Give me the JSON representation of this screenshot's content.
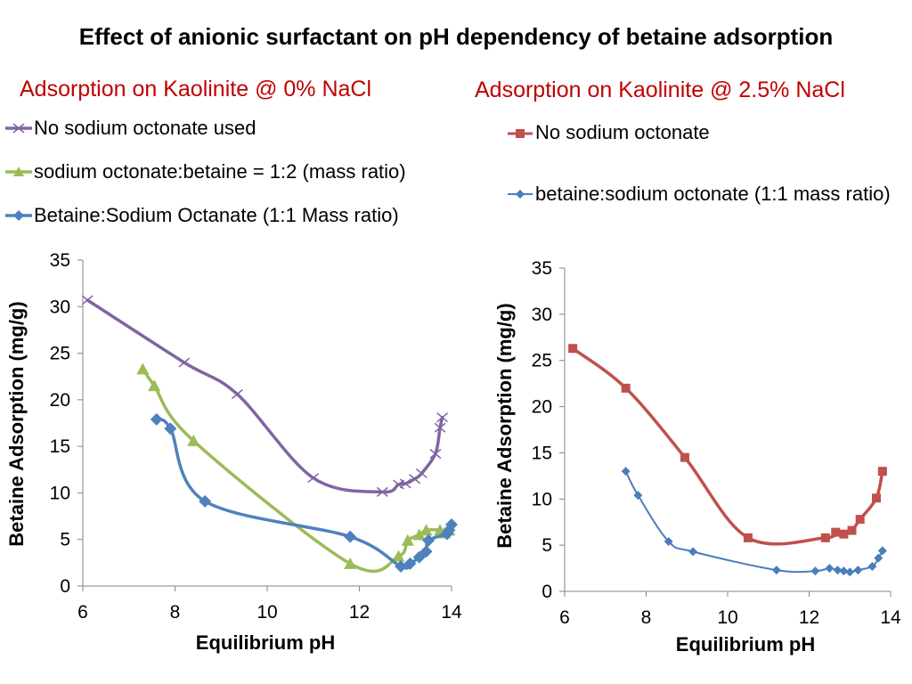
{
  "slide": {
    "title": "Effect of anionic surfactant on pH dependency of betaine adsorption"
  },
  "colors": {
    "purple": "#8064a2",
    "green": "#9bbb59",
    "blue": "#4f81bd",
    "blue_right": "#4a7ebb",
    "red": "#c0504d",
    "title_red": "#c00000",
    "axis": "#868686"
  },
  "chart_data": [
    {
      "type": "scatter",
      "title": "Adsorption on Kaolinite @ 0% NaCl",
      "xlabel": "Equilibrium pH",
      "ylabel": "Betaine Adsorption (mg/g)",
      "xlim": [
        6,
        14
      ],
      "ylim": [
        0,
        35
      ],
      "xticks": [
        "6",
        "8",
        "10",
        "12",
        "14"
      ],
      "yticks": [
        "0",
        "5",
        "10",
        "15",
        "20",
        "25",
        "30",
        "35"
      ],
      "series": [
        {
          "name": "No sodium octonate used",
          "color": "purple",
          "marker": "x",
          "x": [
            6.1,
            8.2,
            9.35,
            11.0,
            12.5,
            12.85,
            13.0,
            13.2,
            13.35,
            13.65,
            13.75,
            13.8
          ],
          "y": [
            30.7,
            24.0,
            20.6,
            11.6,
            10.1,
            10.9,
            11.0,
            11.5,
            12.1,
            14.2,
            17.0,
            18.1
          ]
        },
        {
          "name": "sodium octonate:betaine = 1:2 (mass ratio)",
          "color": "green",
          "marker": "triangle",
          "x": [
            7.3,
            7.55,
            8.4,
            11.8,
            12.85,
            13.05,
            13.3,
            13.45,
            13.75,
            13.85,
            13.95
          ],
          "y": [
            23.3,
            21.5,
            15.6,
            2.4,
            3.2,
            4.9,
            5.5,
            6.0,
            6.0,
            5.7,
            6.0
          ]
        },
        {
          "name": "Betaine:Sodium Octanate (1:1 Mass ratio)",
          "color": "blue",
          "marker": "diamond",
          "x": [
            7.6,
            7.9,
            8.65,
            11.8,
            12.9,
            13.1,
            13.3,
            13.45,
            13.5,
            13.9,
            13.95,
            14.0
          ],
          "y": [
            17.9,
            16.9,
            9.1,
            5.3,
            2.1,
            2.4,
            3.1,
            3.7,
            4.9,
            5.6,
            6.0,
            6.6
          ]
        }
      ]
    },
    {
      "type": "scatter",
      "title": "Adsorption on Kaolinite @ 2.5% NaCl",
      "xlabel": "Equilibrium pH",
      "ylabel": "Betaine Adsorption (mg/g)",
      "xlim": [
        6,
        14
      ],
      "ylim": [
        0,
        35
      ],
      "xticks": [
        "6",
        "8",
        "10",
        "12",
        "14"
      ],
      "yticks": [
        "0",
        "5",
        "10",
        "15",
        "20",
        "25",
        "30",
        "35"
      ],
      "series": [
        {
          "name": "No sodium octonate",
          "color": "red",
          "marker": "square",
          "x": [
            6.2,
            7.5,
            8.95,
            10.5,
            12.4,
            12.65,
            12.85,
            13.05,
            13.25,
            13.65,
            13.8
          ],
          "y": [
            26.3,
            22.0,
            14.5,
            5.8,
            5.8,
            6.4,
            6.2,
            6.6,
            7.8,
            10.1,
            13.0
          ]
        },
        {
          "name": "betaine:sodium octonate (1:1 mass ratio)",
          "color": "blue_right",
          "marker": "diamond",
          "x": [
            7.5,
            7.8,
            8.55,
            9.15,
            11.2,
            12.15,
            12.5,
            12.7,
            12.85,
            13.0,
            13.2,
            13.55,
            13.7,
            13.8
          ],
          "y": [
            13.0,
            10.4,
            5.4,
            4.3,
            2.3,
            2.2,
            2.5,
            2.3,
            2.2,
            2.1,
            2.3,
            2.7,
            3.6,
            4.4
          ]
        }
      ]
    }
  ]
}
